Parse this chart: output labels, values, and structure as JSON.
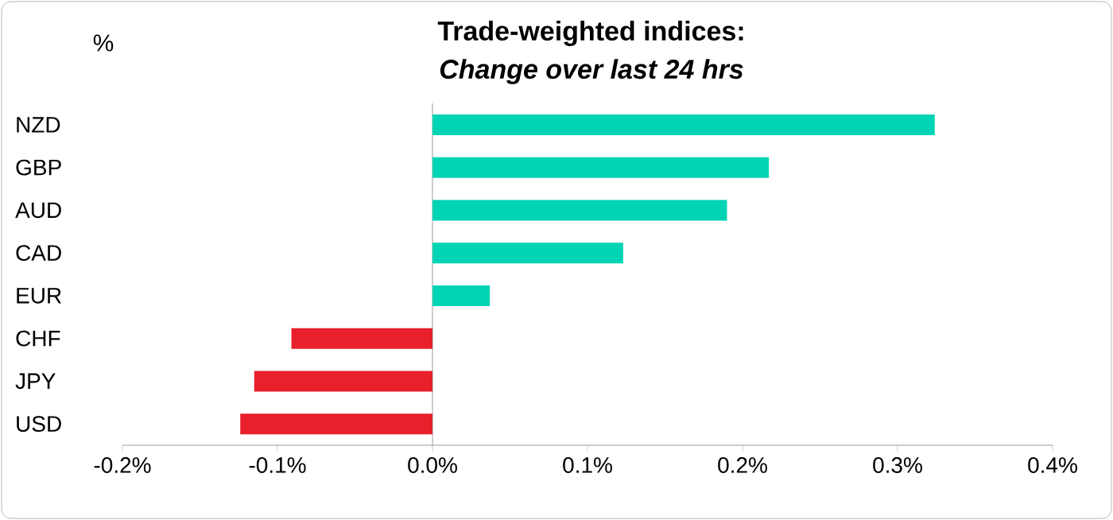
{
  "chart_data": {
    "type": "bar",
    "orientation": "horizontal",
    "title": "Trade-weighted indices:",
    "subtitle": "Change over last 24 hrs",
    "ylabel": "%",
    "categories": [
      "NZD",
      "GBP",
      "AUD",
      "CAD",
      "EUR",
      "CHF",
      "JPY",
      "USD"
    ],
    "values": [
      0.324,
      0.217,
      0.19,
      0.123,
      0.037,
      -0.091,
      -0.115,
      -0.124
    ],
    "colors": [
      "#00d4b4",
      "#00d4b4",
      "#00d4b4",
      "#00d4b4",
      "#00d4b4",
      "#e8202c",
      "#e8202c",
      "#e8202c"
    ],
    "xlim": [
      -0.2,
      0.4
    ],
    "xticks": [
      {
        "value": -0.2,
        "label": "-0.2%"
      },
      {
        "value": -0.1,
        "label": "-0.1%"
      },
      {
        "value": 0,
        "label": "0.0%"
      },
      {
        "value": 0.1,
        "label": "0.1%"
      },
      {
        "value": 0.2,
        "label": "0.2%"
      },
      {
        "value": 0.3,
        "label": "0.3%"
      },
      {
        "value": 0.4,
        "label": "0.4%"
      }
    ]
  }
}
